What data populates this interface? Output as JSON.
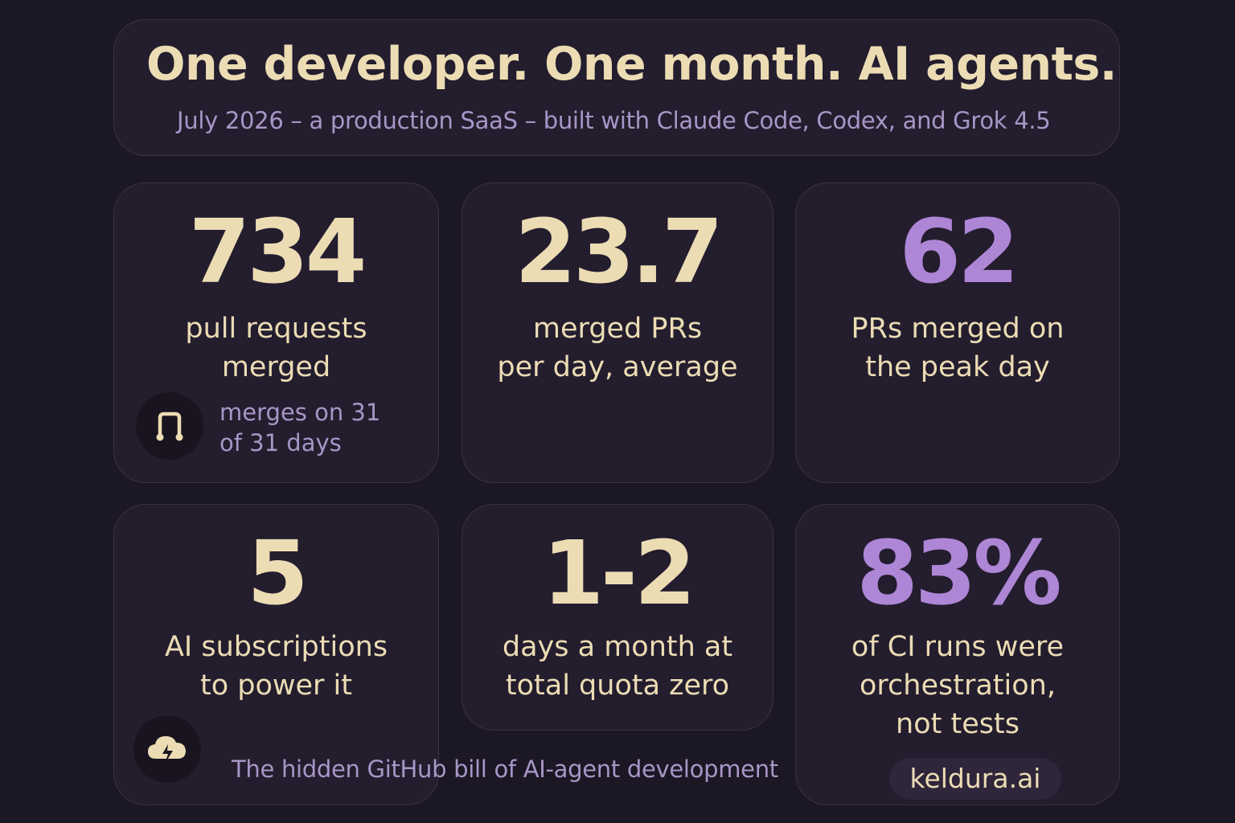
{
  "header": {
    "title": "One developer. One month. AI agents.",
    "subtitle": "July 2026 – a production SaaS – built with Claude Code, Codex, and Grok 4.5"
  },
  "stats": [
    {
      "value": "734",
      "label_lines": [
        "pull requests",
        "merged"
      ],
      "note_lines": [
        "merges on 31",
        "of 31 days"
      ],
      "icon": "merge-icon"
    },
    {
      "value": "23.7",
      "label_lines": [
        "merged PRs",
        "per day, average"
      ]
    },
    {
      "value": "62",
      "label_lines": [
        "PRs merged on",
        "the peak day"
      ],
      "accent": "#ae86d6"
    },
    {
      "value": "5",
      "label_lines": [
        "AI subscriptions",
        "to power it"
      ],
      "icon": "cloud-icon"
    },
    {
      "value": "1-2",
      "label_lines": [
        "days a month at",
        "total quota zero"
      ]
    },
    {
      "value": "83%",
      "label_lines": [
        "of CI runs were",
        "orchestration,",
        "not tests"
      ],
      "accent": "#ae86d6"
    }
  ],
  "footer": {
    "caption": "The hidden GitHub bill of AI-agent development",
    "brand": "keldura.ai"
  },
  "colors": {
    "background": "#1c1725",
    "panel": "#231d2e",
    "cream": "#ecdcb4",
    "lavender": "#a896c6",
    "purple_accent": "#ae86d6"
  }
}
